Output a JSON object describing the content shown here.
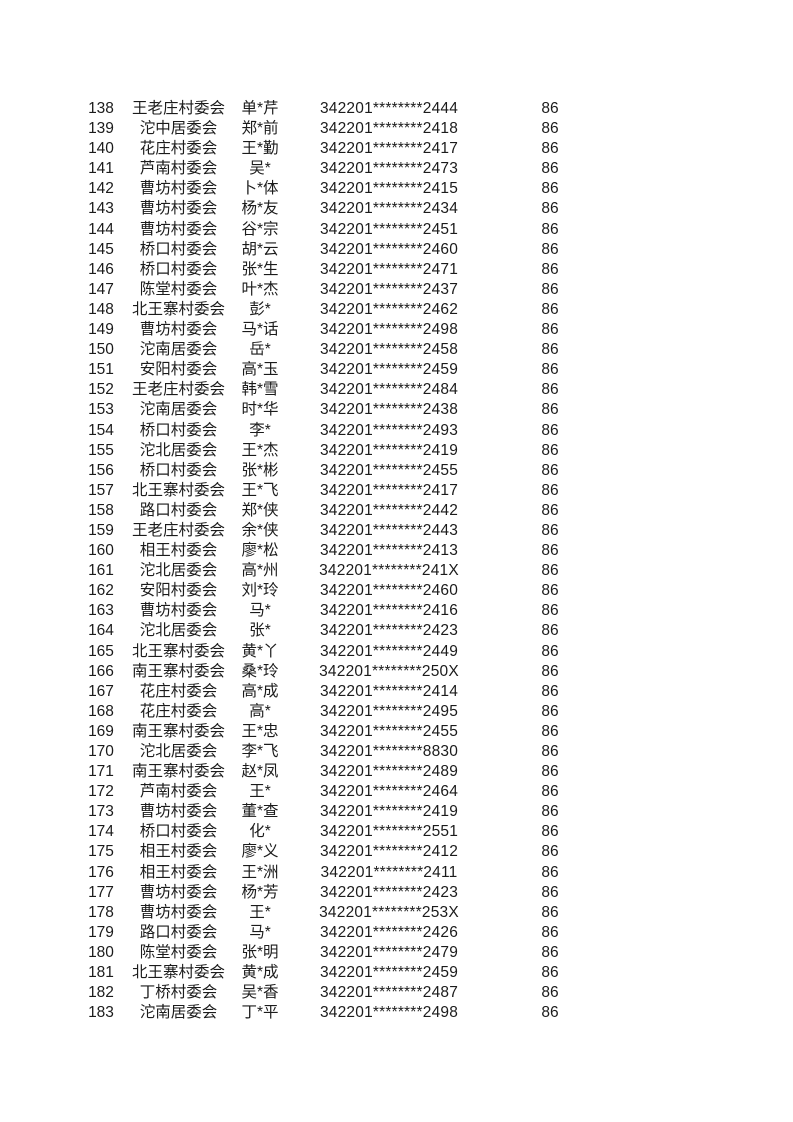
{
  "page": {
    "background_color": "#ffffff",
    "text_color": "#1b1b1b",
    "description_visible_content_only": "continuation page of a score list table, no headers or footers visible"
  },
  "table": {
    "rows": [
      {
        "no": "138",
        "org": "王老庄村委会",
        "name": "单*芹",
        "id_masked": "342201********2444",
        "score": "86"
      },
      {
        "no": "139",
        "org": "沱中居委会",
        "name": "郑*前",
        "id_masked": "342201********2418",
        "score": "86"
      },
      {
        "no": "140",
        "org": "花庄村委会",
        "name": "王*勤",
        "id_masked": "342201********2417",
        "score": "86"
      },
      {
        "no": "141",
        "org": "芦南村委会",
        "name": "吴*",
        "id_masked": "342201********2473",
        "score": "86"
      },
      {
        "no": "142",
        "org": "曹坊村委会",
        "name": "卜*体",
        "id_masked": "342201********2415",
        "score": "86"
      },
      {
        "no": "143",
        "org": "曹坊村委会",
        "name": "杨*友",
        "id_masked": "342201********2434",
        "score": "86"
      },
      {
        "no": "144",
        "org": "曹坊村委会",
        "name": "谷*宗",
        "id_masked": "342201********2451",
        "score": "86"
      },
      {
        "no": "145",
        "org": "桥口村委会",
        "name": "胡*云",
        "id_masked": "342201********2460",
        "score": "86"
      },
      {
        "no": "146",
        "org": "桥口村委会",
        "name": "张*生",
        "id_masked": "342201********2471",
        "score": "86"
      },
      {
        "no": "147",
        "org": "陈堂村委会",
        "name": "叶*杰",
        "id_masked": "342201********2437",
        "score": "86"
      },
      {
        "no": "148",
        "org": "北王寨村委会",
        "name": "彭*",
        "id_masked": "342201********2462",
        "score": "86"
      },
      {
        "no": "149",
        "org": "曹坊村委会",
        "name": "马*话",
        "id_masked": "342201********2498",
        "score": "86"
      },
      {
        "no": "150",
        "org": "沱南居委会",
        "name": "岳*",
        "id_masked": "342201********2458",
        "score": "86"
      },
      {
        "no": "151",
        "org": "安阳村委会",
        "name": "高*玉",
        "id_masked": "342201********2459",
        "score": "86"
      },
      {
        "no": "152",
        "org": "王老庄村委会",
        "name": "韩*雪",
        "id_masked": "342201********2484",
        "score": "86"
      },
      {
        "no": "153",
        "org": "沱南居委会",
        "name": "时*华",
        "id_masked": "342201********2438",
        "score": "86"
      },
      {
        "no": "154",
        "org": "桥口村委会",
        "name": "李*",
        "id_masked": "342201********2493",
        "score": "86"
      },
      {
        "no": "155",
        "org": "沱北居委会",
        "name": "王*杰",
        "id_masked": "342201********2419",
        "score": "86"
      },
      {
        "no": "156",
        "org": "桥口村委会",
        "name": "张*彬",
        "id_masked": "342201********2455",
        "score": "86"
      },
      {
        "no": "157",
        "org": "北王寨村委会",
        "name": "王*飞",
        "id_masked": "342201********2417",
        "score": "86"
      },
      {
        "no": "158",
        "org": "路口村委会",
        "name": "郑*侠",
        "id_masked": "342201********2442",
        "score": "86"
      },
      {
        "no": "159",
        "org": "王老庄村委会",
        "name": "余*侠",
        "id_masked": "342201********2443",
        "score": "86"
      },
      {
        "no": "160",
        "org": "相王村委会",
        "name": "廖*松",
        "id_masked": "342201********2413",
        "score": "86"
      },
      {
        "no": "161",
        "org": "沱北居委会",
        "name": "高*州",
        "id_masked": "342201********241X",
        "score": "86"
      },
      {
        "no": "162",
        "org": "安阳村委会",
        "name": "刘*玲",
        "id_masked": "342201********2460",
        "score": "86"
      },
      {
        "no": "163",
        "org": "曹坊村委会",
        "name": "马*",
        "id_masked": "342201********2416",
        "score": "86"
      },
      {
        "no": "164",
        "org": "沱北居委会",
        "name": "张*",
        "id_masked": "342201********2423",
        "score": "86"
      },
      {
        "no": "165",
        "org": "北王寨村委会",
        "name": "黄*丫",
        "id_masked": "342201********2449",
        "score": "86"
      },
      {
        "no": "166",
        "org": "南王寨村委会",
        "name": "桑*玲",
        "id_masked": "342201********250X",
        "score": "86"
      },
      {
        "no": "167",
        "org": "花庄村委会",
        "name": "高*成",
        "id_masked": "342201********2414",
        "score": "86"
      },
      {
        "no": "168",
        "org": "花庄村委会",
        "name": "高*",
        "id_masked": "342201********2495",
        "score": "86"
      },
      {
        "no": "169",
        "org": "南王寨村委会",
        "name": "王*忠",
        "id_masked": "342201********2455",
        "score": "86"
      },
      {
        "no": "170",
        "org": "沱北居委会",
        "name": "李*飞",
        "id_masked": "342201********8830",
        "score": "86"
      },
      {
        "no": "171",
        "org": "南王寨村委会",
        "name": "赵*凤",
        "id_masked": "342201********2489",
        "score": "86"
      },
      {
        "no": "172",
        "org": "芦南村委会",
        "name": "王*",
        "id_masked": "342201********2464",
        "score": "86"
      },
      {
        "no": "173",
        "org": "曹坊村委会",
        "name": "董*查",
        "id_masked": "342201********2419",
        "score": "86"
      },
      {
        "no": "174",
        "org": "桥口村委会",
        "name": "化*",
        "id_masked": "342201********2551",
        "score": "86"
      },
      {
        "no": "175",
        "org": "相王村委会",
        "name": "廖*义",
        "id_masked": "342201********2412",
        "score": "86"
      },
      {
        "no": "176",
        "org": "相王村委会",
        "name": "王*洲",
        "id_masked": "342201********2411",
        "score": "86"
      },
      {
        "no": "177",
        "org": "曹坊村委会",
        "name": "杨*芳",
        "id_masked": "342201********2423",
        "score": "86"
      },
      {
        "no": "178",
        "org": "曹坊村委会",
        "name": "王*",
        "id_masked": "342201********253X",
        "score": "86"
      },
      {
        "no": "179",
        "org": "路口村委会",
        "name": "马*",
        "id_masked": "342201********2426",
        "score": "86"
      },
      {
        "no": "180",
        "org": "陈堂村委会",
        "name": "张*明",
        "id_masked": "342201********2479",
        "score": "86"
      },
      {
        "no": "181",
        "org": "北王寨村委会",
        "name": "黄*成",
        "id_masked": "342201********2459",
        "score": "86"
      },
      {
        "no": "182",
        "org": "丁桥村委会",
        "name": "吴*香",
        "id_masked": "342201********2487",
        "score": "86"
      },
      {
        "no": "183",
        "org": "沱南居委会",
        "name": "丁*平",
        "id_masked": "342201********2498",
        "score": "86"
      }
    ]
  }
}
